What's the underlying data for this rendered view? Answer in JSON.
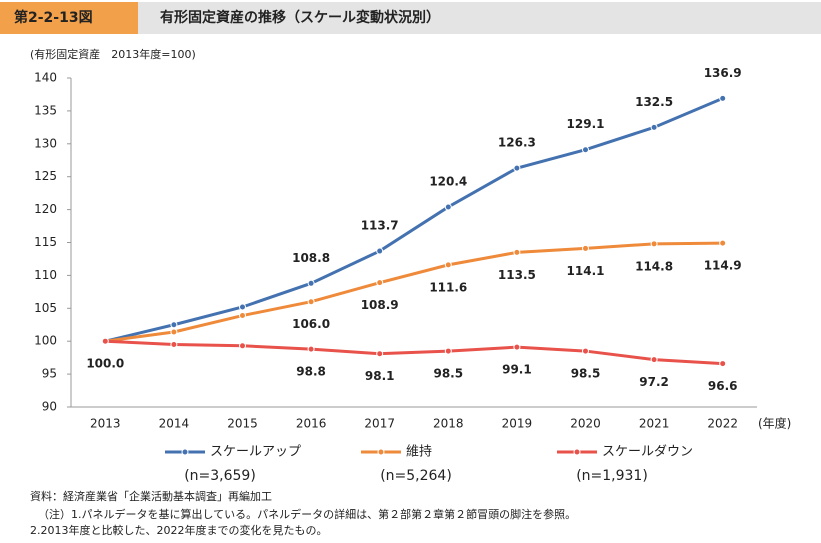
{
  "header": {
    "figure_no": "第2-2-13図",
    "title": "有形固定資産の推移（スケール変動状況別）"
  },
  "chart_data": {
    "type": "line",
    "y_axis_label": "(有形固定資産　2013年度=100)",
    "x_axis_label": "(年度)",
    "categories": [
      "2013",
      "2014",
      "2015",
      "2016",
      "2017",
      "2018",
      "2019",
      "2020",
      "2021",
      "2022"
    ],
    "ylim": [
      90,
      140
    ],
    "yticks": [
      90,
      95,
      100,
      105,
      110,
      115,
      120,
      125,
      130,
      135,
      140
    ],
    "grid": false,
    "series": [
      {
        "name": "スケールアップ",
        "note": "(n=3,659)",
        "color": "#4472b0",
        "values": [
          100,
          102.5,
          105.2,
          108.8,
          113.7,
          120.4,
          126.3,
          129.1,
          132.5,
          136.9
        ],
        "value_labels": [
          "100.0",
          null,
          null,
          "108.8",
          "113.7",
          "120.4",
          "126.3",
          "129.1",
          "132.5",
          "136.9"
        ]
      },
      {
        "name": "維持",
        "note": "(n=5,264)",
        "color": "#ee8a3a",
        "values": [
          100,
          101.4,
          103.9,
          106.0,
          108.9,
          111.6,
          113.5,
          114.1,
          114.8,
          114.9
        ],
        "value_labels": [
          null,
          null,
          null,
          "106.0",
          "108.9",
          "111.6",
          "113.5",
          "114.1",
          "114.8",
          "114.9"
        ]
      },
      {
        "name": "スケールダウン",
        "note": "(n=1,931)",
        "color": "#e8524a",
        "values": [
          100,
          99.5,
          99.3,
          98.8,
          98.1,
          98.5,
          99.1,
          98.5,
          97.2,
          96.6
        ],
        "value_labels": [
          null,
          null,
          null,
          "98.8",
          "98.1",
          "98.5",
          "99.1",
          "98.5",
          "97.2",
          "96.6"
        ]
      }
    ]
  },
  "footer": {
    "notes": [
      "資料：経済産業省「企業活動基本調査」再編加工",
      "（注）1.パネルデータを基に算出している。パネルデータの詳細は、第２部第２章第２節冒頭の脚注を参照。",
      "2.2013年度と比較した、2022年度までの変化を見たもの。"
    ]
  }
}
